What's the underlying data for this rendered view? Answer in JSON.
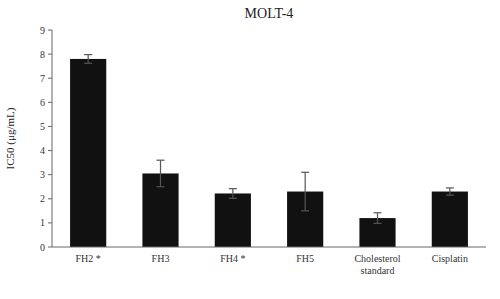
{
  "chart_data": {
    "type": "bar",
    "title": "MOLT-4",
    "categories": [
      "FH2 *",
      "FH3",
      "FH4 *",
      "FH5",
      "Cholesterol\nstandard",
      "Cisplatin"
    ],
    "values": [
      7.8,
      3.05,
      2.22,
      2.3,
      1.2,
      2.3
    ],
    "errors": [
      0.18,
      0.55,
      0.2,
      0.8,
      0.22,
      0.15
    ],
    "color": "#111111",
    "ylabel": "IC50 (μg/mL)",
    "ylim": [
      0,
      9
    ],
    "yticks": [
      0,
      1,
      2,
      3,
      4,
      5,
      6,
      7,
      8,
      9
    ],
    "grid": false
  }
}
